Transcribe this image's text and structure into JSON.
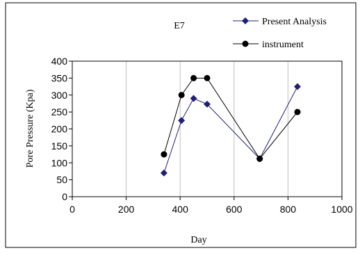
{
  "chart_data": {
    "type": "line",
    "title": "E7",
    "xlabel": "Day",
    "ylabel": "Pore Pressure (Kpa)",
    "xlim": [
      0,
      1000
    ],
    "ylim": [
      0,
      400
    ],
    "x_ticks": [
      0,
      200,
      400,
      600,
      800,
      1000
    ],
    "y_ticks": [
      0,
      50,
      100,
      150,
      200,
      250,
      300,
      350,
      400
    ],
    "grid": "vertical",
    "legend_position": "top-right",
    "series": [
      {
        "name": "Present Analysis",
        "marker": "diamond",
        "color": "#1f1f7a",
        "x": [
          340,
          405,
          450,
          500,
          695,
          835
        ],
        "y": [
          70,
          225,
          290,
          273,
          112,
          325
        ]
      },
      {
        "name": "instrument",
        "marker": "circle",
        "color": "#000000",
        "x": [
          340,
          405,
          450,
          500,
          695,
          835
        ],
        "y": [
          125,
          300,
          350,
          350,
          112,
          250
        ]
      }
    ]
  }
}
